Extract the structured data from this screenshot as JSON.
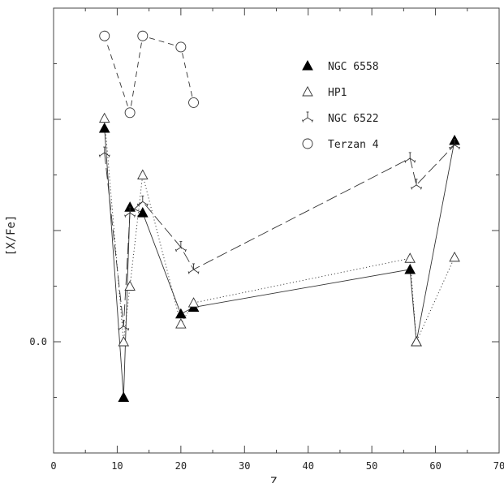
{
  "chart_data": {
    "type": "line",
    "title": "",
    "xlabel": "Z",
    "ylabel": "[X/Fe]",
    "xlim": [
      0,
      70
    ],
    "ylim": [
      -1.0,
      3.0
    ],
    "x_ticks": [
      0,
      10,
      20,
      30,
      40,
      50,
      60,
      70
    ],
    "x_tick_labels": [
      "0",
      "10",
      "20",
      "30",
      "40",
      "50",
      "60",
      "70"
    ],
    "y_ticks": [
      -1.0,
      0.0,
      1.0,
      2.0,
      3.0
    ],
    "y_tick_labels": [
      "0.0"
    ],
    "y_labeled_tick": 0.0,
    "grid": false,
    "legend_position": "upper-right",
    "series": [
      {
        "name": "NGC 6558",
        "marker": "filled-triangle",
        "line_style": "solid",
        "x": [
          8,
          11,
          12,
          14,
          20,
          22,
          56,
          57,
          63
        ],
        "y": [
          1.92,
          -0.5,
          1.21,
          1.16,
          0.25,
          0.31,
          0.65,
          0.0,
          1.81
        ]
      },
      {
        "name": "HP1",
        "marker": "open-triangle",
        "line_style": "dotted",
        "x": [
          8,
          11,
          12,
          14,
          20,
          22,
          56,
          57,
          63
        ],
        "y": [
          2.01,
          0.0,
          0.5,
          1.5,
          0.16,
          0.35,
          0.75,
          0.0,
          0.76
        ]
      },
      {
        "name": "NGC 6522",
        "marker": "skeletal-triangle",
        "line_style": "long-dash",
        "x": [
          8,
          11,
          12,
          14,
          20,
          22,
          56,
          57,
          63
        ],
        "y": [
          1.7,
          0.14,
          1.16,
          1.26,
          0.85,
          0.65,
          1.65,
          1.41,
          1.77
        ]
      },
      {
        "name": "Terzan 4",
        "marker": "open-circle",
        "line_style": "dashed",
        "x": [
          8,
          12,
          14,
          20,
          22
        ],
        "y": [
          2.75,
          2.06,
          2.75,
          2.65,
          2.15
        ]
      }
    ]
  }
}
